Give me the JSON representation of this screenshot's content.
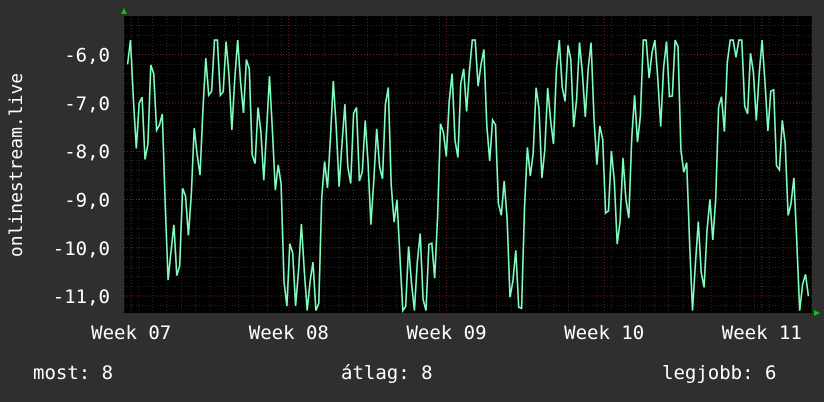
{
  "chart_data": {
    "type": "line",
    "ylabel": "onlinestream.live",
    "yticks": [
      "-6,0",
      "-7,0",
      "-8,0",
      "-9,0",
      "-10,0",
      "-11,0"
    ],
    "ytick_values": [
      -6,
      -7,
      -8,
      -9,
      -10,
      -11
    ],
    "ylim": [
      -11.35,
      -5.2
    ],
    "xticks": [
      "Week 07",
      "Week 08",
      "Week 09",
      "Week 10",
      "Week 11"
    ],
    "xtick_positions": [
      0.5,
      11.5,
      22.5,
      33.5,
      44.5
    ],
    "xlim": [
      0,
      48
    ],
    "grid": true,
    "colors": {
      "line": "#7fffbf",
      "background": "#000000",
      "grid": "#555555",
      "frame": "#2f2f2f"
    },
    "series": [
      {
        "values": [
          -6.8,
          -7.0,
          -7.3,
          -9.8,
          -10.0,
          -7.0,
          -6.4,
          -6.0,
          -7.0,
          -7.3,
          -8.0,
          -10.0,
          -11.0,
          -10.5,
          -8.0,
          -7.3,
          -8.5,
          -8.0,
          -8.0,
          -10.5,
          -11.2,
          -9.8,
          -7.8,
          -6.6,
          -6.0,
          -6.8,
          -10.0,
          -10.5,
          -8.0,
          -7.0,
          -6.8,
          -6.0,
          -7.2,
          -8.0,
          -10.0,
          -7.0,
          -6.2,
          -6.0,
          -6.9,
          -10.0,
          -10.8,
          -6.5,
          -5.8,
          -6.2,
          -7.0,
          -7.2,
          -10.0,
          -11.0
        ]
      }
    ],
    "series_raw_hint": "hourly-ish oscillation between about -5.7 and -11.3"
  },
  "stats": {
    "now": "most: 8",
    "avg": "átlag: 8",
    "best": "legjobb: 6"
  }
}
